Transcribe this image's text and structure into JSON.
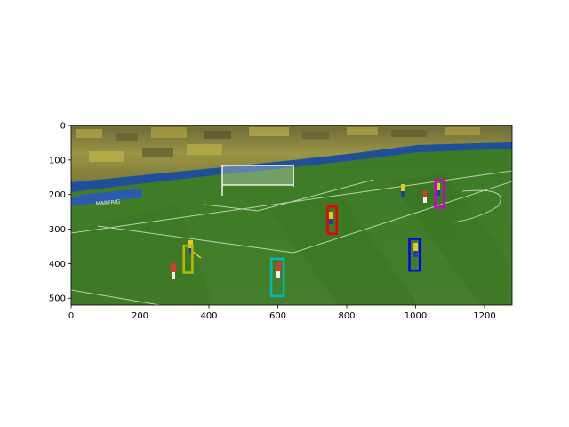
{
  "figure": {
    "image_description_alt": "football match frame with player detection boxes",
    "x_ticks": [
      "0",
      "200",
      "400",
      "600",
      "800",
      "1000",
      "1200"
    ],
    "y_ticks": [
      "0",
      "100",
      "200",
      "300",
      "400",
      "500"
    ],
    "x_range": [
      0,
      1280
    ],
    "y_range": [
      0,
      520
    ]
  },
  "detections": [
    {
      "label": "red-box",
      "color": "#ee0000",
      "x": 745,
      "y": 235,
      "w": 26,
      "h": 78
    },
    {
      "label": "magenta-box",
      "color": "#cc00cc",
      "x": 1057,
      "y": 158,
      "w": 25,
      "h": 80
    },
    {
      "label": "blue-box",
      "color": "#0000ee",
      "x": 982,
      "y": 328,
      "w": 30,
      "h": 92
    },
    {
      "label": "olive-box",
      "color": "#bbbb00",
      "x": 327,
      "y": 348,
      "w": 25,
      "h": 78
    },
    {
      "label": "cyan-box",
      "color": "#00bbbb",
      "x": 581,
      "y": 386,
      "w": 36,
      "h": 108
    }
  ],
  "colors": {
    "pitch": "#3f7f28",
    "pitch_dark": "#356f20",
    "crowd": "#8a8a3a",
    "boards": "#1f4f9a",
    "lines": "#d8e8d0"
  }
}
